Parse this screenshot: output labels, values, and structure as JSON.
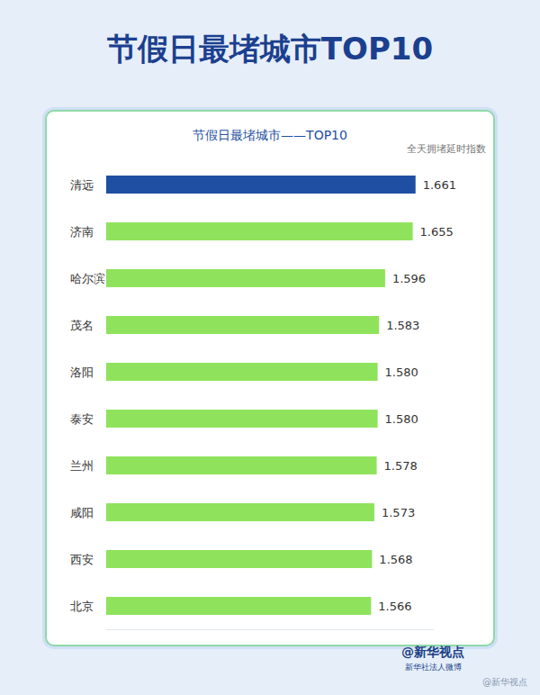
{
  "chart_data": {
    "type": "bar",
    "title": "节假日最堵城市TOP10",
    "subtitle": "节假日最堵城市——TOP10",
    "xlabel": "全天拥堵延时指数",
    "categories": [
      "清远",
      "济南",
      "哈尔滨",
      "茂名",
      "洛阳",
      "泰安",
      "兰州",
      "咸阳",
      "西安",
      "北京"
    ],
    "values": [
      1.661,
      1.655,
      1.596,
      1.583,
      1.58,
      1.58,
      1.578,
      1.573,
      1.568,
      1.566
    ],
    "value_labels": [
      "1.661",
      "1.655",
      "1.596",
      "1.583",
      "1.580",
      "1.580",
      "1.578",
      "1.573",
      "1.568",
      "1.566"
    ],
    "colors": [
      "#1f4fa3",
      "#8fe35c",
      "#8fe35c",
      "#8fe35c",
      "#8fe35c",
      "#8fe35c",
      "#8fe35c",
      "#8fe35c",
      "#8fe35c",
      "#8fe35c"
    ],
    "orientation": "horizontal",
    "data_labels": true,
    "tick_labels": "y",
    "grid": false,
    "xlim": [
      1.0,
      1.7
    ],
    "source": [
      "@新华视点",
      "新华社法人微博"
    ],
    "watermark": "@新华视点"
  }
}
